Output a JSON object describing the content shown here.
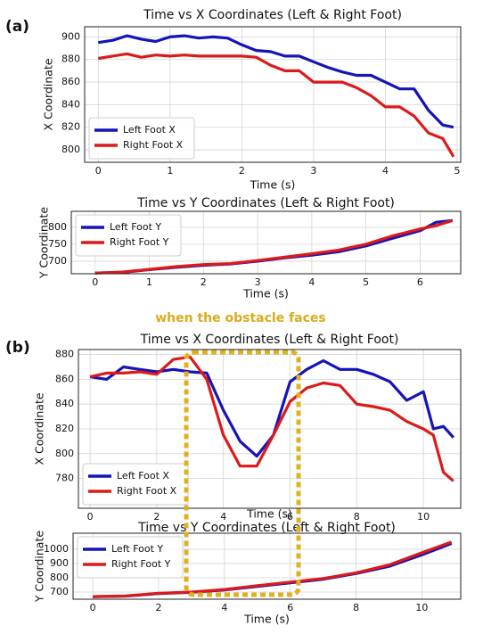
{
  "chart_data": [
    {
      "type": "line",
      "panel_label": "(a)",
      "title": "Time vs X Coordinates (Left & Right Foot)",
      "x_label": "Time (s)",
      "y_label": "X Coordinate",
      "xlim": [
        -0.19,
        5.05
      ],
      "ylim": [
        789,
        909
      ],
      "xticks": [
        0,
        1,
        2,
        3,
        4,
        5
      ],
      "yticks": [
        800,
        820,
        840,
        860,
        880,
        900
      ],
      "grid": true,
      "legend": "lower left",
      "series": [
        {
          "name": "Left Foot X",
          "color": "#1414b8",
          "x": [
            0,
            0.2,
            0.4,
            0.6,
            0.8,
            1.0,
            1.2,
            1.4,
            1.6,
            1.8,
            2.0,
            2.2,
            2.4,
            2.6,
            2.8,
            3.0,
            3.2,
            3.4,
            3.6,
            3.8,
            4.0,
            4.2,
            4.4,
            4.6,
            4.8,
            4.95
          ],
          "values": [
            895,
            897,
            901,
            898,
            896,
            900,
            901,
            899,
            900,
            899,
            893,
            888,
            887,
            883,
            883,
            878,
            873,
            869,
            866,
            866,
            860,
            854,
            854,
            835,
            822,
            820
          ]
        },
        {
          "name": "Right Foot X",
          "color": "#dd1a1a",
          "x": [
            0,
            0.2,
            0.4,
            0.6,
            0.8,
            1.0,
            1.2,
            1.4,
            1.6,
            1.8,
            2.0,
            2.2,
            2.4,
            2.6,
            2.8,
            3.0,
            3.2,
            3.4,
            3.6,
            3.8,
            4.0,
            4.2,
            4.4,
            4.6,
            4.8,
            4.95
          ],
          "values": [
            881,
            883,
            885,
            882,
            884,
            883,
            884,
            883,
            883,
            883,
            883,
            882,
            875,
            870,
            870,
            860,
            860,
            860,
            855,
            848,
            838,
            838,
            830,
            815,
            810,
            794
          ]
        }
      ]
    },
    {
      "type": "line",
      "title": "Time vs Y Coordinates (Left & Right Foot)",
      "x_label": "Time (s)",
      "y_label": "Y Coordinate",
      "xlim": [
        -0.44,
        6.75
      ],
      "ylim": [
        663,
        847
      ],
      "xticks": [
        0,
        1,
        2,
        3,
        4,
        5,
        6
      ],
      "yticks": [
        700,
        750,
        800
      ],
      "grid": true,
      "legend": "upper left",
      "series": [
        {
          "name": "Left Foot Y",
          "color": "#1414b8",
          "x": [
            0,
            0.5,
            1,
            1.5,
            2,
            2.5,
            3,
            3.5,
            4,
            4.5,
            5,
            5.5,
            6,
            6.3,
            6.6
          ],
          "values": [
            665,
            667,
            675,
            682,
            688,
            692,
            700,
            710,
            718,
            728,
            745,
            768,
            790,
            815,
            820
          ]
        },
        {
          "name": "Right Foot Y",
          "color": "#dd1a1a",
          "x": [
            0,
            0.5,
            1,
            1.5,
            2,
            2.5,
            3,
            3.5,
            4,
            4.5,
            5,
            5.5,
            6,
            6.3,
            6.6
          ],
          "values": [
            665,
            668,
            676,
            684,
            690,
            693,
            702,
            712,
            722,
            733,
            750,
            775,
            795,
            805,
            820
          ]
        }
      ]
    },
    {
      "type": "line",
      "panel_label": "(b)",
      "annotation": "when the obstacle faces",
      "title": "Time vs X Coordinates (Left & Right Foot)",
      "x_label": "Time (s)",
      "y_label": "X Coordinate",
      "xlim": [
        -0.35,
        11.12
      ],
      "ylim": [
        756,
        884
      ],
      "xticks": [
        0,
        2,
        4,
        6,
        8,
        10
      ],
      "yticks": [
        780,
        800,
        820,
        840,
        860,
        880
      ],
      "grid": true,
      "legend": "lower left",
      "series": [
        {
          "name": "Left Foot X",
          "color": "#1414b8",
          "x": [
            0,
            0.5,
            1,
            1.5,
            2,
            2.5,
            3,
            3.5,
            4,
            4.5,
            5,
            5.5,
            6,
            6.5,
            7,
            7.5,
            8,
            8.5,
            9,
            9.5,
            10,
            10.3,
            10.6,
            10.9
          ],
          "values": [
            862,
            860,
            870,
            868,
            866,
            868,
            866,
            865,
            835,
            810,
            798,
            815,
            858,
            868,
            875,
            868,
            868,
            864,
            858,
            843,
            850,
            820,
            822,
            813
          ]
        },
        {
          "name": "Right Foot X",
          "color": "#dd1a1a",
          "x": [
            0,
            0.5,
            1,
            1.5,
            2,
            2.5,
            3,
            3.5,
            4,
            4.5,
            5,
            5.5,
            6,
            6.5,
            7,
            7.5,
            8,
            8.5,
            9,
            9.5,
            10,
            10.3,
            10.6,
            10.9
          ],
          "values": [
            862,
            865,
            865,
            866,
            864,
            876,
            878,
            860,
            815,
            790,
            790,
            815,
            842,
            853,
            857,
            855,
            840,
            838,
            835,
            826,
            820,
            815,
            785,
            778
          ]
        }
      ]
    },
    {
      "type": "line",
      "title": "Time vs Y Coordinates (Left & Right Foot)",
      "x_label": "Time (s)",
      "y_label": "Y Coordinate",
      "xlim": [
        -0.6,
        11.18
      ],
      "ylim": [
        650,
        1112
      ],
      "xticks": [
        0,
        2,
        4,
        6,
        8,
        10
      ],
      "yticks": [
        700,
        800,
        900,
        1000
      ],
      "grid": true,
      "legend": "upper left",
      "series": [
        {
          "name": "Left Foot Y",
          "color": "#1414b8",
          "x": [
            0,
            1,
            2,
            3,
            4,
            5,
            6,
            7,
            8,
            9,
            10,
            10.9
          ],
          "values": [
            668,
            672,
            690,
            698,
            715,
            740,
            765,
            790,
            830,
            880,
            960,
            1040
          ]
        },
        {
          "name": "Right Foot Y",
          "color": "#dd1a1a",
          "x": [
            0,
            1,
            2,
            3,
            4,
            5,
            6,
            7,
            8,
            9,
            10,
            10.9
          ],
          "values": [
            668,
            673,
            692,
            700,
            718,
            745,
            770,
            795,
            835,
            890,
            975,
            1050
          ]
        }
      ]
    }
  ]
}
